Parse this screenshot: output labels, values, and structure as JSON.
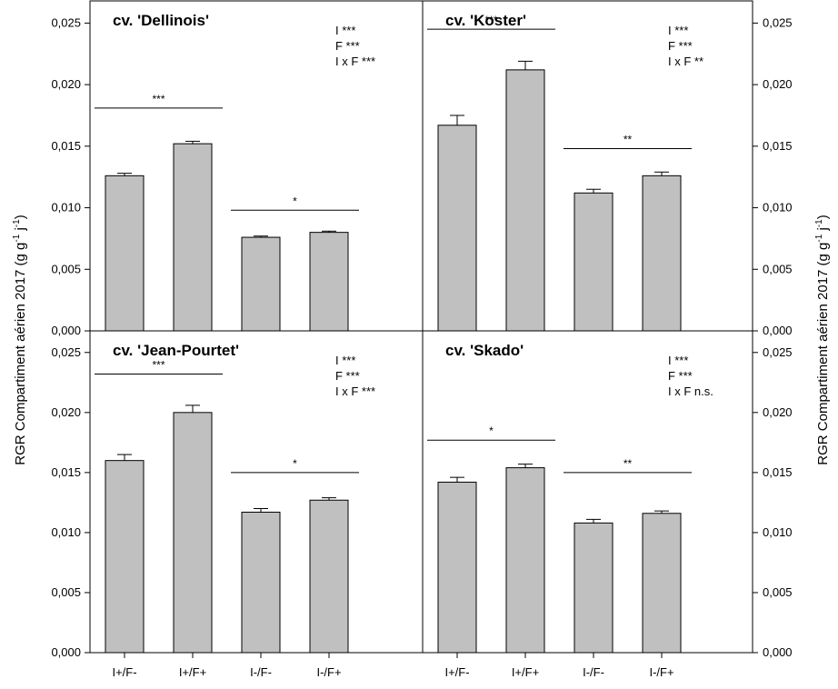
{
  "chart_data": {
    "type": "bar",
    "ylabel": "RGR Compartiment aérien 2017 (g g-1 j-1)",
    "ylabel_parts": {
      "main": "RGR Compartiment aérien 2017 (g g",
      "sup1": "-1",
      "mid": " j",
      "sup2": "-1",
      "end": ")"
    },
    "categories": [
      "I+/F-",
      "I+/F+",
      "I-/F-",
      "I-/F+"
    ],
    "yticks": [
      "0,000",
      "0,005",
      "0,010",
      "0,015",
      "0,020",
      "0,025"
    ],
    "panels": [
      {
        "title": "cv. 'Dellinois'",
        "ylim": [
          0,
          0.0268
        ],
        "values": [
          0.0126,
          0.0152,
          0.0076,
          0.008
        ],
        "errors": [
          0.0002,
          0.0002,
          0.0001,
          0.0001
        ],
        "stats": [
          "I ***",
          "F ***",
          "I x F ***"
        ],
        "comparisons": [
          {
            "pair": [
              0,
              1
            ],
            "label": "***",
            "y": 0.0181
          },
          {
            "pair": [
              2,
              3
            ],
            "label": "*",
            "y": 0.0098
          }
        ]
      },
      {
        "title": "cv. 'Koster'",
        "ylim": [
          0,
          0.0268
        ],
        "values": [
          0.0167,
          0.0212,
          0.0112,
          0.0126
        ],
        "errors": [
          0.0008,
          0.0007,
          0.0003,
          0.0003
        ],
        "stats": [
          "I ***",
          "F ***",
          "I x F **"
        ],
        "comparisons": [
          {
            "pair": [
              0,
              1
            ],
            "label": "***",
            "y": 0.0245
          },
          {
            "pair": [
              2,
              3
            ],
            "label": "**",
            "y": 0.0148
          }
        ]
      },
      {
        "title": "cv. 'Jean-Pourtet'",
        "ylim": [
          0,
          0.0268
        ],
        "values": [
          0.016,
          0.02,
          0.0117,
          0.0127
        ],
        "errors": [
          0.0005,
          0.0006,
          0.0003,
          0.0002
        ],
        "stats": [
          "I ***",
          "F ***",
          "I x F ***"
        ],
        "comparisons": [
          {
            "pair": [
              0,
              1
            ],
            "label": "***",
            "y": 0.0232
          },
          {
            "pair": [
              2,
              3
            ],
            "label": "*",
            "y": 0.015
          }
        ]
      },
      {
        "title": "cv. 'Skado'",
        "ylim": [
          0,
          0.0268
        ],
        "values": [
          0.0142,
          0.0154,
          0.0108,
          0.0116
        ],
        "errors": [
          0.0004,
          0.0003,
          0.0003,
          0.0002
        ],
        "stats": [
          "I ***",
          "F ***",
          "I x F n.s."
        ],
        "comparisons": [
          {
            "pair": [
              0,
              1
            ],
            "label": "*",
            "y": 0.0177
          },
          {
            "pair": [
              2,
              3
            ],
            "label": "**",
            "y": 0.015
          }
        ]
      }
    ],
    "colors": {
      "bar": "#c0c0c0",
      "outline": "#000000"
    },
    "grid": false,
    "legend": "none"
  }
}
